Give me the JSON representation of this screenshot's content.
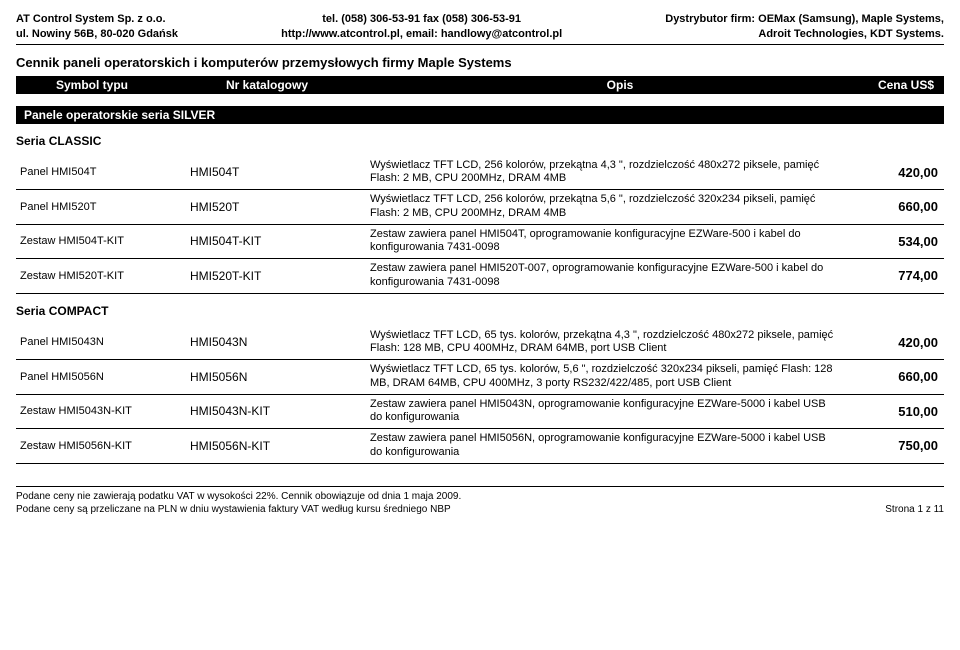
{
  "header": {
    "left1": "AT Control System Sp. z o.o.",
    "left2": "ul. Nowiny 56B, 80-020 Gdańsk",
    "mid1": "tel. (058) 306-53-91 fax (058) 306-53-91",
    "mid2": "http://www.atcontrol.pl, email: handlowy@atcontrol.pl",
    "right1": "Dystrybutor firm: OEMax (Samsung), Maple Systems,",
    "right2": "Adroit Technologies, KDT Systems."
  },
  "title": "Cennik paneli operatorskich i komputerów przemysłowych firmy Maple Systems",
  "cols": {
    "c1": "Symbol typu",
    "c2": "Nr katalogowy",
    "c3": "Opis",
    "c4": "Cena US$"
  },
  "section1": "Panele operatorskie seria SILVER",
  "sub1": "Seria CLASSIC",
  "classic": [
    {
      "name": "Panel HMI504T",
      "cat": "HMI504T",
      "desc": "Wyświetlacz TFT LCD, 256 kolorów, przekątna 4,3 \", rozdzielczość 480x272 piksele, pamięć Flash: 2 MB, CPU 200MHz, DRAM 4MB",
      "price": "420,00"
    },
    {
      "name": "Panel HMI520T",
      "cat": "HMI520T",
      "desc": "Wyświetlacz TFT LCD, 256 kolorów, przekątna 5,6 \", rozdzielczość 320x234 pikseli, pamięć Flash: 2 MB, CPU 200MHz, DRAM 4MB",
      "price": "660,00"
    },
    {
      "name": "Zestaw HMI504T-KIT",
      "cat": "HMI504T-KIT",
      "desc": "Zestaw zawiera panel HMI504T, oprogramowanie konfiguracyjne EZWare-500 i kabel do konfigurowania 7431-0098",
      "price": "534,00"
    },
    {
      "name": "Zestaw HMI520T-KIT",
      "cat": "HMI520T-KIT",
      "desc": "Zestaw zawiera panel HMI520T-007, oprogramowanie konfiguracyjne EZWare-500 i kabel do konfigurowania 7431-0098",
      "price": "774,00"
    }
  ],
  "sub2": "Seria COMPACT",
  "compact": [
    {
      "name": "Panel HMI5043N",
      "cat": "HMI5043N",
      "desc": "Wyświetlacz TFT LCD, 65 tys. kolorów, przekątna 4,3 \", rozdzielczość 480x272 piksele, pamięć Flash: 128 MB, CPU 400MHz, DRAM 64MB, port USB Client",
      "price": "420,00"
    },
    {
      "name": "Panel HMI5056N",
      "cat": "HMI5056N",
      "desc": "Wyświetlacz TFT LCD, 65 tys. kolorów, 5,6 \", rozdzielczość 320x234 pikseli, pamięć Flash: 128 MB, DRAM 64MB, CPU 400MHz, 3 porty RS232/422/485, port USB Client",
      "price": "660,00"
    },
    {
      "name": "Zestaw HMI5043N-KIT",
      "cat": "HMI5043N-KIT",
      "desc": "Zestaw zawiera panel HMI5043N, oprogramowanie konfiguracyjne EZWare-5000 i kabel USB do konfigurowania",
      "price": "510,00"
    },
    {
      "name": "Zestaw HMI5056N-KIT",
      "cat": "HMI5056N-KIT",
      "desc": "Zestaw zawiera panel HMI5056N, oprogramowanie konfiguracyjne EZWare-5000 i kabel USB do konfigurowania",
      "price": "750,00"
    }
  ],
  "footer": {
    "l1": "Podane ceny nie zawierają podatku VAT w wysokości 22%. Cennik obowiązuje od dnia 1 maja 2009.",
    "l2": "Podane ceny są przeliczane na PLN w dniu wystawienia faktury VAT według kursu średniego NBP",
    "page": "Strona 1 z 11"
  }
}
